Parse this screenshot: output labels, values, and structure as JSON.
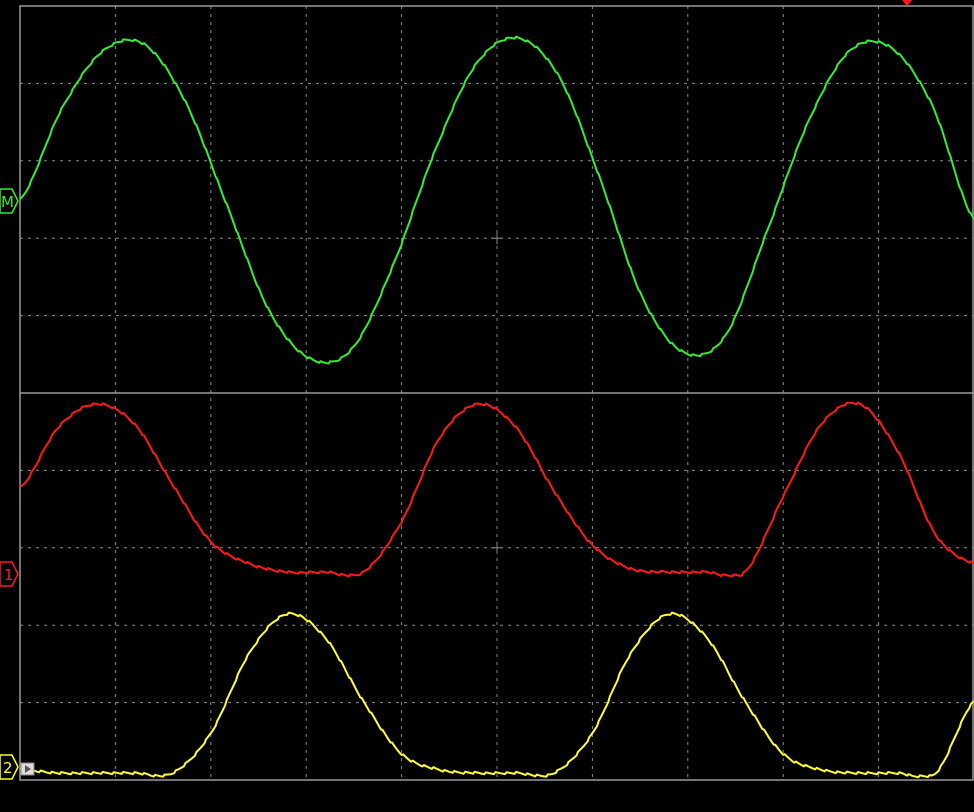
{
  "colors": {
    "background": "#000000",
    "grid": "#8a8a8a",
    "border": "#9a9a9a",
    "math": "#33ee33",
    "ch1": "#ff1a1a",
    "ch2": "#ffff33",
    "trigger": "#ff1a1a"
  },
  "grid": {
    "horizontal_divisions": 10,
    "vertical_divisions": 10
  },
  "display": {
    "split_horizontally": true
  },
  "markers": {
    "math": {
      "label": "M",
      "icon": "math-channel-marker"
    },
    "ch1": {
      "label": "1",
      "icon": "channel-1-marker"
    },
    "ch2": {
      "label": "2",
      "icon": "channel-2-marker"
    }
  },
  "trigger": {
    "icon": "trigger-position-icon"
  },
  "chart_data": {
    "type": "line",
    "grid": true,
    "series": [
      {
        "key": "math",
        "values": [
          0.5,
          0.78,
          0.96,
          0.98,
          0.8,
          0.48,
          0.16,
          0.01,
          0.04,
          0.3,
          0.65,
          0.92,
          1.0,
          0.88,
          0.56,
          0.2,
          0.03,
          0.08,
          0.4,
          0.74,
          0.96,
          0.97,
          0.79,
          0.44
        ]
      },
      {
        "key": "ch1",
        "values": [
          0.5,
          0.86,
          1.0,
          0.88,
          0.52,
          0.18,
          0.05,
          0.0,
          0.0,
          0.0,
          0.3,
          0.8,
          1.0,
          0.86,
          0.48,
          0.16,
          0.02,
          0.0,
          0.0,
          0.0,
          0.45,
          0.88,
          1.0,
          0.72,
          0.22,
          0.05
        ]
      },
      {
        "key": "ch2",
        "values": [
          0.02,
          0.0,
          0.0,
          0.0,
          0.0,
          0.25,
          0.75,
          1.0,
          0.85,
          0.45,
          0.12,
          0.02,
          0.0,
          0.0,
          0.0,
          0.25,
          0.75,
          1.0,
          0.85,
          0.45,
          0.12,
          0.02,
          0.0,
          0.0,
          0.0,
          0.45
        ]
      }
    ]
  }
}
